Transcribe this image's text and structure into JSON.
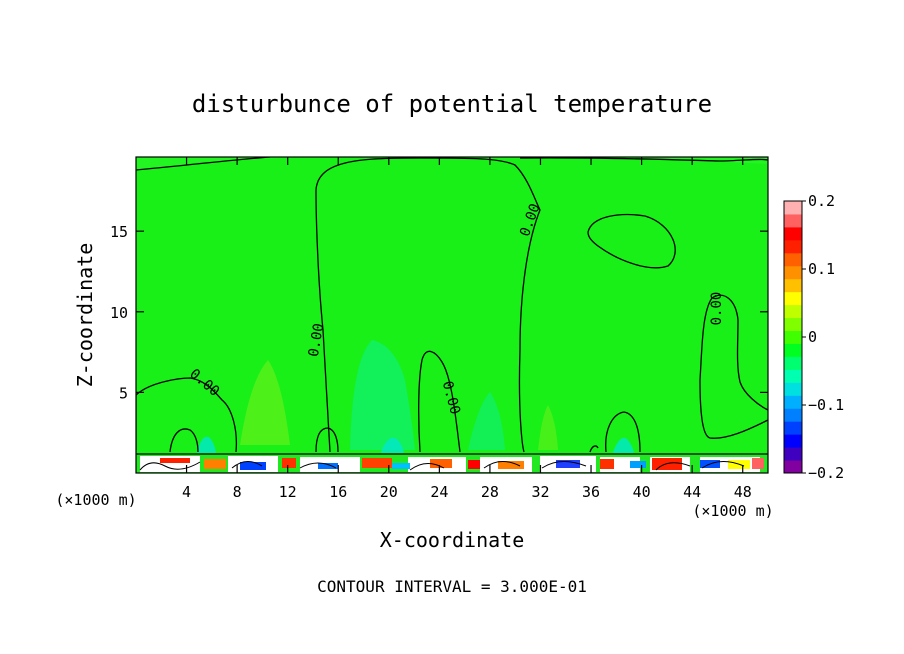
{
  "chart_data": {
    "type": "heatmap",
    "title": "disturbunce of potential temperature",
    "xlabel": "X-coordinate",
    "ylabel": "Z-coordinate",
    "x_unit": "(×1000 m)",
    "x_unit_right": "(×1000 m)",
    "footer": "CONTOUR INTERVAL = 3.000E-01",
    "xlim": [
      0,
      50
    ],
    "ylim": [
      0,
      19.6
    ],
    "x_ticks": [
      4,
      8,
      12,
      16,
      20,
      24,
      28,
      32,
      36,
      40,
      44,
      48
    ],
    "x_tick_labels": [
      "4",
      "8",
      "12",
      "16",
      "20",
      "24",
      "28",
      "32",
      "36",
      "40",
      "44",
      "48"
    ],
    "y_ticks": [
      5,
      10,
      15
    ],
    "y_tick_labels": [
      "5",
      "10",
      "15"
    ],
    "colorbar": {
      "min": -0.2,
      "max": 0.2,
      "tick_values": [
        0.2,
        0.1,
        0,
        -0.1,
        -0.2
      ],
      "tick_labels": [
        "0.2",
        "0.1",
        "0",
        "−0.1",
        "−0.2"
      ],
      "colors": [
        "#8000a0",
        "#4000c0",
        "#0000ff",
        "#0040ff",
        "#0080ff",
        "#00b0ff",
        "#00e0e0",
        "#00ffb0",
        "#00ff70",
        "#00ff20",
        "#40ff00",
        "#80ff00",
        "#c0ff00",
        "#ffff00",
        "#ffc000",
        "#ff9000",
        "#ff6000",
        "#ff2000",
        "#ff0000",
        "#ff6060",
        "#ffb0b0"
      ]
    },
    "field": {
      "background": "0.00",
      "background_color": "#18f018"
    },
    "contour_labels": [
      {
        "text": "0.00",
        "x": 5.2,
        "z": 5.4,
        "angle": 40
      },
      {
        "text": "0.00",
        "x": 14.6,
        "z": 8.2,
        "angle": -80
      },
      {
        "text": "0.00",
        "x": 24.6,
        "z": 4.6,
        "angle": 75
      },
      {
        "text": "0.00",
        "x": 31.5,
        "z": 15.6,
        "angle": -70
      },
      {
        "text": "0.00",
        "x": 46.3,
        "z": 10.2,
        "angle": -90
      }
    ]
  }
}
